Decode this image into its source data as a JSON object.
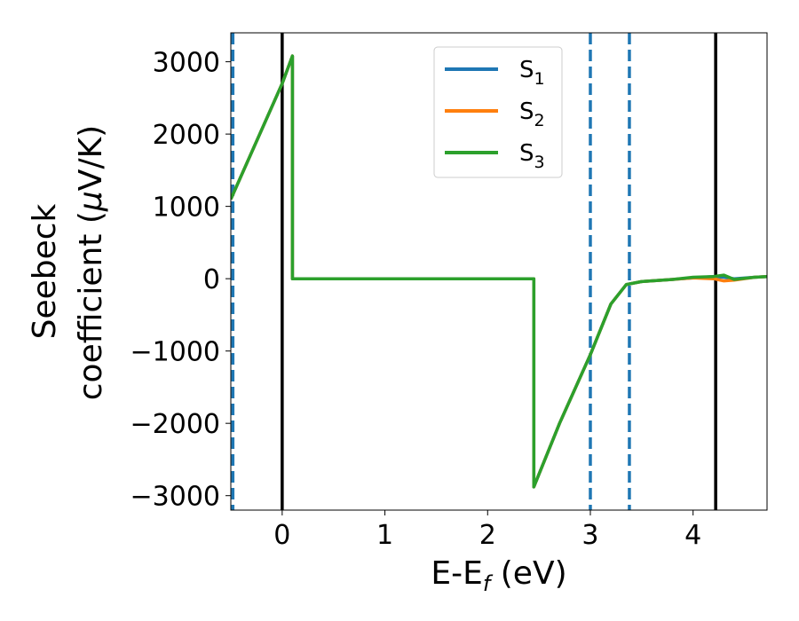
{
  "chart_data": {
    "type": "line",
    "title": "",
    "xlabel": "E-E",
    "xlabel_sub": "f",
    "xlabel_unit": " (eV)",
    "ylabel_line1": "Seebeck",
    "ylabel_line2": "coefficient  (",
    "ylabel_mu": "μ",
    "ylabel_unit": "V/K)",
    "xlim": [
      -0.5,
      4.72
    ],
    "ylim": [
      -3200,
      3400
    ],
    "x_ticks": [
      0,
      1,
      2,
      3,
      4
    ],
    "x_tick_labels": [
      "0",
      "1",
      "2",
      "3",
      "4"
    ],
    "y_ticks": [
      -3000,
      -2000,
      -1000,
      0,
      1000,
      2000,
      3000
    ],
    "y_tick_labels": [
      "−3000",
      "−2000",
      "−1000",
      "0",
      "1000",
      "2000",
      "3000"
    ],
    "grid": false,
    "legend_position": "top-center",
    "vlines_solid": [
      0,
      4.22
    ],
    "vlines_dashed": [
      -0.48,
      3.0,
      3.38
    ],
    "colors": {
      "S1": "#1f77b4",
      "S2": "#ff7f0e",
      "S3": "#2ca02c",
      "solid_vline": "#000000",
      "dashed_vline": "#1f77b4"
    },
    "series": [
      {
        "name": "S",
        "sub": "1",
        "color_key": "S1",
        "x": [
          -0.5,
          0,
          0.1,
          0.1,
          0.5,
          1.0,
          1.5,
          2.0,
          2.45,
          2.45,
          2.7,
          3.0,
          3.2,
          3.35,
          3.5,
          3.8,
          4.0,
          4.2,
          4.3,
          4.4,
          4.6,
          4.72
        ],
        "y": [
          1100,
          2700,
          3080,
          0,
          0,
          0,
          0,
          0,
          0,
          -2880,
          -2000,
          -1050,
          -350,
          -80,
          -40,
          -10,
          10,
          30,
          20,
          0,
          20,
          30
        ]
      },
      {
        "name": "S",
        "sub": "2",
        "color_key": "S2",
        "x": [
          -0.5,
          0,
          0.1,
          0.1,
          0.5,
          1.0,
          1.5,
          2.0,
          2.45,
          2.45,
          2.7,
          3.0,
          3.2,
          3.35,
          3.5,
          3.8,
          4.0,
          4.2,
          4.3,
          4.4,
          4.6,
          4.72
        ],
        "y": [
          1100,
          2700,
          3080,
          0,
          0,
          0,
          0,
          0,
          0,
          -2880,
          -2000,
          -1050,
          -350,
          -80,
          -40,
          -10,
          10,
          0,
          -30,
          -20,
          20,
          30
        ]
      },
      {
        "name": "S",
        "sub": "3",
        "color_key": "S3",
        "x": [
          -0.5,
          0,
          0.1,
          0.1,
          0.5,
          1.0,
          1.5,
          2.0,
          2.45,
          2.45,
          2.7,
          3.0,
          3.2,
          3.35,
          3.5,
          3.8,
          4.0,
          4.2,
          4.3,
          4.4,
          4.6,
          4.72
        ],
        "y": [
          1100,
          2700,
          3080,
          0,
          0,
          0,
          0,
          0,
          0,
          -2880,
          -2000,
          -1050,
          -350,
          -80,
          -40,
          -10,
          20,
          30,
          50,
          -10,
          20,
          30
        ]
      }
    ]
  }
}
